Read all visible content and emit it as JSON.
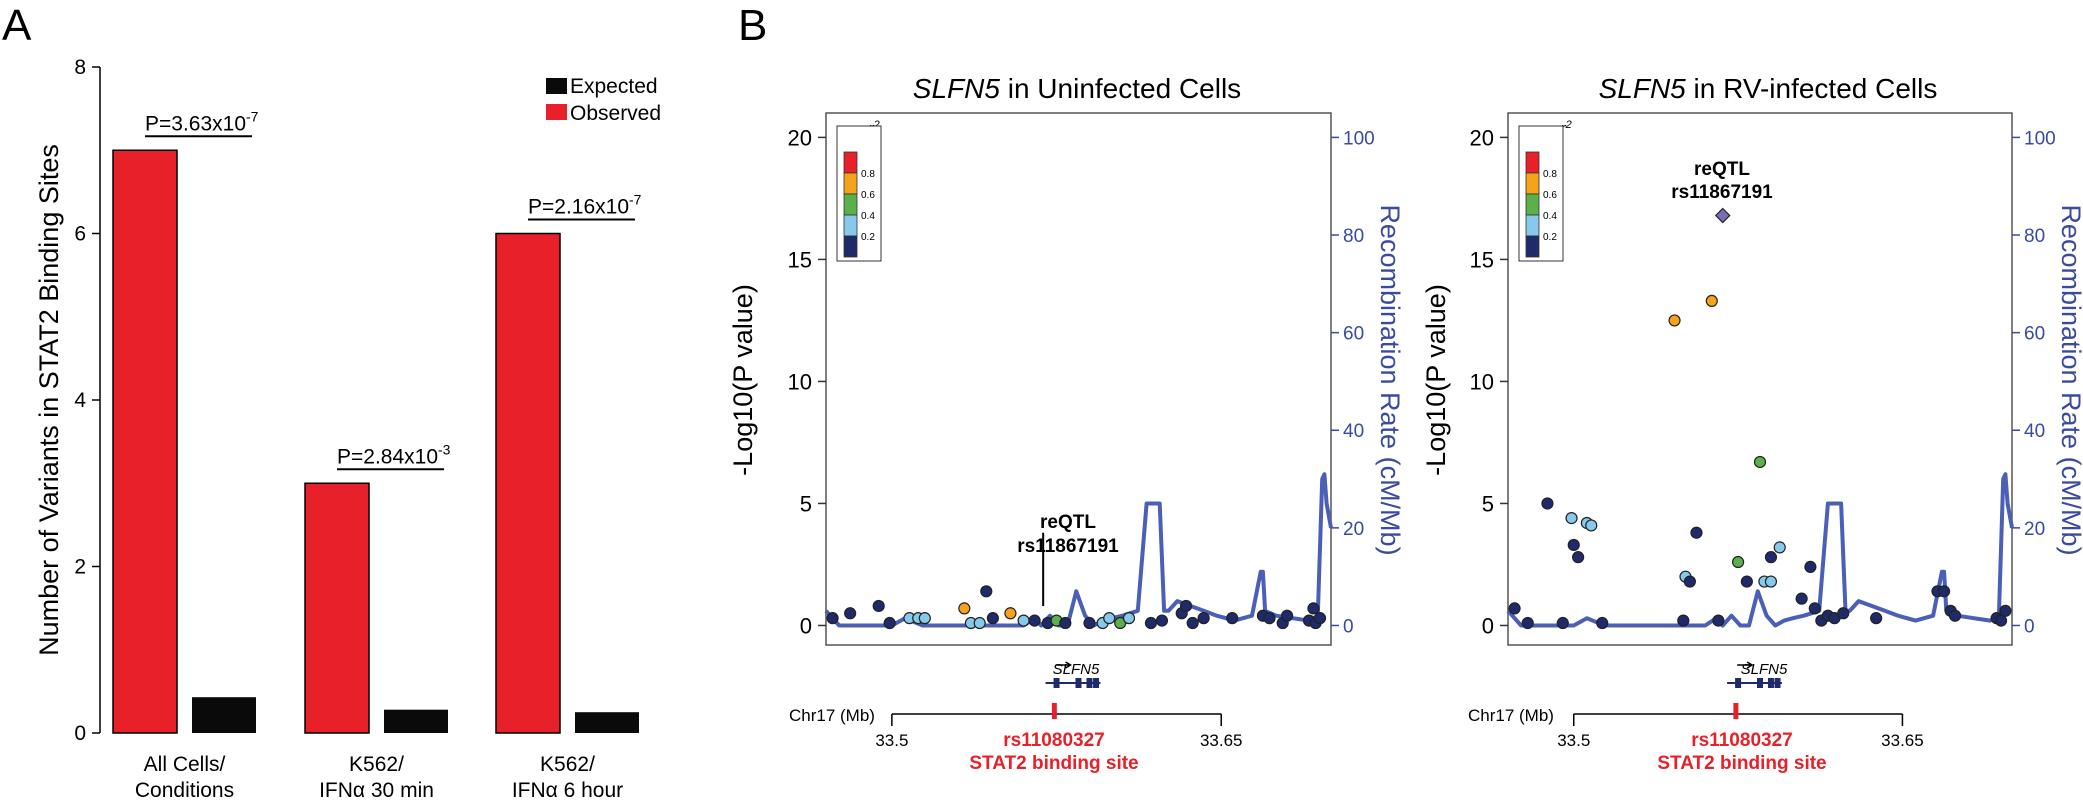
{
  "panel_labels": {
    "a": "A",
    "b": "B"
  },
  "colors": {
    "observed": "#e8202a",
    "expected": "#0a0a0a",
    "recomb": "#4a5fb5",
    "axis_right": "#3a4aa0",
    "snp_red": "#e8202a",
    "highlight": "#e8202a",
    "r2_colors": [
      "#e8202a",
      "#f4a31b",
      "#5ab04a",
      "#86c9ea",
      "#1f2a6b"
    ],
    "lead_snp": "#7a6db5"
  },
  "chart_data": [
    {
      "type": "bar",
      "ylabel": "Number of Variants in STAT2 Binding Sites",
      "ylim": [
        0,
        8
      ],
      "yticks": [
        "0",
        "2",
        "4",
        "6",
        "8"
      ],
      "yticks_values": [
        0,
        2,
        4,
        6,
        8
      ],
      "categories": [
        [
          "All Cells/",
          "Conditions"
        ],
        [
          "K562/",
          "IFNα 30 min"
        ],
        [
          "K562/",
          "IFNα 6 hour"
        ]
      ],
      "series": [
        {
          "name": "Observed",
          "values": [
            7,
            3,
            6
          ]
        },
        {
          "name": "Expected",
          "values": [
            0.43,
            0.28,
            0.25
          ]
        }
      ],
      "legend_position": "top-right",
      "annotations": [
        {
          "base": "P=3.63x10",
          "exp": "-7"
        },
        {
          "base": "P=2.84x10",
          "exp": "-3"
        },
        {
          "base": "P=2.16x10",
          "exp": "-7"
        }
      ]
    },
    {
      "type": "scatter",
      "title_gene": "SLFN5",
      "title_rest": " in Uninfected Cells",
      "ylabel": "-Log10(P value)",
      "ylabel2": "Recombination Rate (cM/Mb)",
      "ylim": [
        -0.8,
        21
      ],
      "y2lim": [
        -4,
        105
      ],
      "xlim": [
        33.47,
        33.7
      ],
      "yticks": [
        "0",
        "5",
        "10",
        "15",
        "20"
      ],
      "yticks_values": [
        0,
        5,
        10,
        15,
        20
      ],
      "y2ticks": [
        "0",
        "20",
        "40",
        "60",
        "80",
        "100"
      ],
      "y2ticks_values": [
        0,
        20,
        40,
        60,
        80,
        100
      ],
      "legend_title": "r",
      "legend_title_sup": "2",
      "legend_labels": [
        "0.8",
        "0.6",
        "0.4",
        "0.2"
      ],
      "lead_label": [
        "reQTL",
        "rs11867191"
      ],
      "lead_position": [
        33.568,
        0.2
      ],
      "points": [
        {
          "x": 33.473,
          "y": 0.3,
          "c": 4
        },
        {
          "x": 33.481,
          "y": 0.5,
          "c": 4
        },
        {
          "x": 33.494,
          "y": 0.8,
          "c": 4
        },
        {
          "x": 33.499,
          "y": 0.1,
          "c": 4
        },
        {
          "x": 33.508,
          "y": 0.3,
          "c": 3
        },
        {
          "x": 33.512,
          "y": 0.3,
          "c": 3
        },
        {
          "x": 33.515,
          "y": 0.3,
          "c": 3
        },
        {
          "x": 33.533,
          "y": 0.7,
          "c": 1
        },
        {
          "x": 33.536,
          "y": 0.1,
          "c": 3
        },
        {
          "x": 33.54,
          "y": 0.1,
          "c": 3
        },
        {
          "x": 33.543,
          "y": 1.4,
          "c": 4
        },
        {
          "x": 33.546,
          "y": 0.3,
          "c": 4
        },
        {
          "x": 33.554,
          "y": 0.5,
          "c": 1
        },
        {
          "x": 33.56,
          "y": 0.2,
          "c": 3
        },
        {
          "x": 33.565,
          "y": 0.2,
          "c": 4
        },
        {
          "x": 33.571,
          "y": 0.1,
          "c": 4
        },
        {
          "x": 33.575,
          "y": 0.2,
          "c": 2
        },
        {
          "x": 33.579,
          "y": 0.1,
          "c": 4
        },
        {
          "x": 33.59,
          "y": 0.1,
          "c": 4
        },
        {
          "x": 33.596,
          "y": 0.1,
          "c": 3
        },
        {
          "x": 33.599,
          "y": 0.3,
          "c": 3
        },
        {
          "x": 33.604,
          "y": 0.1,
          "c": 2
        },
        {
          "x": 33.608,
          "y": 0.3,
          "c": 3
        },
        {
          "x": 33.618,
          "y": 0.1,
          "c": 4
        },
        {
          "x": 33.623,
          "y": 0.2,
          "c": 4
        },
        {
          "x": 33.632,
          "y": 0.5,
          "c": 4
        },
        {
          "x": 33.634,
          "y": 0.8,
          "c": 4
        },
        {
          "x": 33.637,
          "y": 0.1,
          "c": 4
        },
        {
          "x": 33.642,
          "y": 0.3,
          "c": 4
        },
        {
          "x": 33.655,
          "y": 0.3,
          "c": 4
        },
        {
          "x": 33.669,
          "y": 0.4,
          "c": 4
        },
        {
          "x": 33.672,
          "y": 0.3,
          "c": 4
        },
        {
          "x": 33.678,
          "y": 0.1,
          "c": 4
        },
        {
          "x": 33.68,
          "y": 0.4,
          "c": 4
        },
        {
          "x": 33.69,
          "y": 0.2,
          "c": 4
        },
        {
          "x": 33.692,
          "y": 0.7,
          "c": 4
        },
        {
          "x": 33.693,
          "y": 0.1,
          "c": 4
        },
        {
          "x": 33.695,
          "y": 0.3,
          "c": 4
        }
      ],
      "lead_point": null,
      "recomb_x": [
        33.47,
        33.472,
        33.476,
        33.48,
        33.5,
        33.506,
        33.514,
        33.518,
        33.54,
        33.56,
        33.565,
        33.568,
        33.572,
        33.576,
        33.58,
        33.584,
        33.588,
        33.592,
        33.596,
        33.6,
        33.605,
        33.612,
        33.616,
        33.62,
        33.622,
        33.624,
        33.626,
        33.63,
        33.642,
        33.648,
        33.656,
        33.664,
        33.668,
        33.669,
        33.67,
        33.675,
        33.69,
        33.694,
        33.696,
        33.697,
        33.698,
        33.7
      ],
      "recomb_y": [
        3,
        2,
        0,
        0,
        0,
        1.5,
        0,
        0,
        0,
        0,
        1.5,
        0,
        2,
        0,
        0,
        7,
        2,
        0,
        1,
        1.5,
        2,
        3,
        25,
        25,
        25,
        3,
        3,
        5,
        3,
        2,
        1,
        2,
        11,
        11,
        3,
        2,
        1,
        2,
        30,
        31,
        25,
        20
      ],
      "gene_label": "SLFN5",
      "gene_start": 33.57,
      "gene_end": 33.595,
      "exons": [
        33.575,
        33.585,
        33.59,
        33.593
      ],
      "chr_label": "Chr17 (Mb)",
      "chr_ticks": [
        "33.5",
        "33.65"
      ],
      "chr_ticks_values": [
        33.5,
        33.65
      ],
      "chr_range": [
        33.5,
        33.65
      ],
      "site_position": 33.574,
      "site_label": [
        "rs11080327",
        "STAT2 binding site"
      ]
    },
    {
      "type": "scatter",
      "title_gene": "SLFN5",
      "title_rest": " in RV-infected Cells",
      "ylabel": "-Log10(P value)",
      "ylabel2": "Recombination Rate (cM/Mb)",
      "ylim": [
        -0.8,
        21
      ],
      "y2lim": [
        -4,
        105
      ],
      "xlim": [
        33.47,
        33.7
      ],
      "yticks": [
        "0",
        "5",
        "10",
        "15",
        "20"
      ],
      "yticks_values": [
        0,
        5,
        10,
        15,
        20
      ],
      "y2ticks": [
        "0",
        "20",
        "40",
        "60",
        "80",
        "100"
      ],
      "y2ticks_values": [
        0,
        20,
        40,
        60,
        80,
        100
      ],
      "legend_title": "r",
      "legend_title_sup": "2",
      "legend_labels": [
        "0.8",
        "0.6",
        "0.4",
        "0.2"
      ],
      "lead_label": [
        "reQTL",
        "rs11867191"
      ],
      "lead_position": [
        33.568,
        16.8
      ],
      "points": [
        {
          "x": 33.473,
          "y": 0.7,
          "c": 4
        },
        {
          "x": 33.479,
          "y": 0.1,
          "c": 4
        },
        {
          "x": 33.488,
          "y": 5.0,
          "c": 4
        },
        {
          "x": 33.495,
          "y": 0.1,
          "c": 4
        },
        {
          "x": 33.499,
          "y": 4.4,
          "c": 3
        },
        {
          "x": 33.5,
          "y": 3.3,
          "c": 4
        },
        {
          "x": 33.502,
          "y": 2.8,
          "c": 4
        },
        {
          "x": 33.506,
          "y": 4.2,
          "c": 3
        },
        {
          "x": 33.508,
          "y": 4.1,
          "c": 3
        },
        {
          "x": 33.513,
          "y": 0.1,
          "c": 4
        },
        {
          "x": 33.546,
          "y": 12.5,
          "c": 1
        },
        {
          "x": 33.55,
          "y": 0.2,
          "c": 4
        },
        {
          "x": 33.551,
          "y": 2.0,
          "c": 3
        },
        {
          "x": 33.553,
          "y": 1.8,
          "c": 4
        },
        {
          "x": 33.556,
          "y": 3.8,
          "c": 4
        },
        {
          "x": 33.563,
          "y": 13.3,
          "c": 1
        },
        {
          "x": 33.566,
          "y": 0.2,
          "c": 4
        },
        {
          "x": 33.575,
          "y": 2.6,
          "c": 2
        },
        {
          "x": 33.579,
          "y": 1.8,
          "c": 4
        },
        {
          "x": 33.585,
          "y": 6.7,
          "c": 2
        },
        {
          "x": 33.587,
          "y": 1.8,
          "c": 3
        },
        {
          "x": 33.59,
          "y": 1.8,
          "c": 3
        },
        {
          "x": 33.59,
          "y": 2.8,
          "c": 4
        },
        {
          "x": 33.594,
          "y": 3.2,
          "c": 3
        },
        {
          "x": 33.604,
          "y": 1.1,
          "c": 4
        },
        {
          "x": 33.608,
          "y": 2.4,
          "c": 4
        },
        {
          "x": 33.61,
          "y": 0.7,
          "c": 4
        },
        {
          "x": 33.613,
          "y": 0.2,
          "c": 4
        },
        {
          "x": 33.616,
          "y": 0.4,
          "c": 4
        },
        {
          "x": 33.619,
          "y": 0.3,
          "c": 4
        },
        {
          "x": 33.623,
          "y": 0.5,
          "c": 4
        },
        {
          "x": 33.638,
          "y": 0.3,
          "c": 4
        },
        {
          "x": 33.666,
          "y": 1.4,
          "c": 4
        },
        {
          "x": 33.669,
          "y": 1.4,
          "c": 4
        },
        {
          "x": 33.672,
          "y": 0.6,
          "c": 4
        },
        {
          "x": 33.674,
          "y": 0.4,
          "c": 4
        },
        {
          "x": 33.693,
          "y": 0.3,
          "c": 4
        },
        {
          "x": 33.695,
          "y": 0.2,
          "c": 4
        },
        {
          "x": 33.697,
          "y": 0.6,
          "c": 4
        }
      ],
      "lead_point": {
        "x": 33.568,
        "y": 16.8
      },
      "recomb_x": [
        33.47,
        33.472,
        33.476,
        33.48,
        33.5,
        33.506,
        33.514,
        33.518,
        33.54,
        33.56,
        33.565,
        33.568,
        33.572,
        33.576,
        33.58,
        33.584,
        33.588,
        33.592,
        33.596,
        33.6,
        33.605,
        33.612,
        33.616,
        33.62,
        33.622,
        33.624,
        33.626,
        33.63,
        33.642,
        33.648,
        33.656,
        33.664,
        33.668,
        33.669,
        33.67,
        33.675,
        33.69,
        33.694,
        33.696,
        33.697,
        33.698,
        33.7
      ],
      "recomb_y": [
        3,
        2,
        0,
        0,
        0,
        1.5,
        0,
        0,
        0,
        0,
        1.5,
        0,
        2,
        0,
        0,
        7,
        2,
        0,
        1,
        1.5,
        2,
        3,
        25,
        25,
        25,
        3,
        3,
        5,
        3,
        2,
        1,
        2,
        11,
        11,
        3,
        2,
        1,
        2,
        30,
        31,
        25,
        20
      ],
      "gene_label": "SLFN5",
      "gene_start": 33.57,
      "gene_end": 33.595,
      "exons": [
        33.575,
        33.585,
        33.59,
        33.593
      ],
      "chr_label": "Chr17 (Mb)",
      "chr_ticks": [
        "33.5",
        "33.65"
      ],
      "chr_ticks_values": [
        33.5,
        33.65
      ],
      "chr_range": [
        33.5,
        33.65
      ],
      "site_position": 33.574,
      "site_label": [
        "rs11080327",
        "STAT2 binding site"
      ]
    }
  ]
}
